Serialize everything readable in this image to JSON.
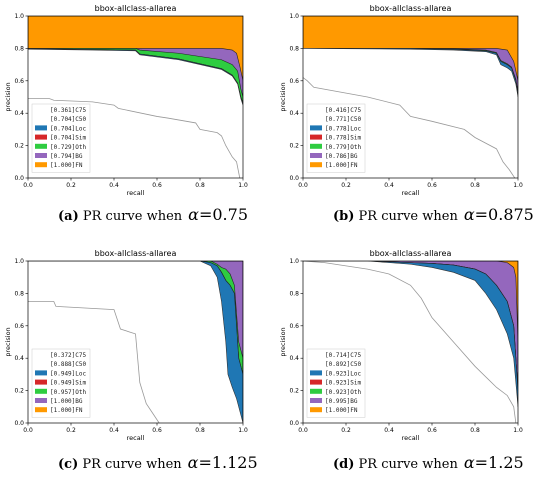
{
  "figures": [
    {
      "letter": "(a)",
      "text": "PR curve when",
      "symbol": "α",
      "value": "0.75"
    },
    {
      "letter": "(b)",
      "text": "PR curve when",
      "symbol": "α",
      "value": "0.875"
    },
    {
      "letter": "(c)",
      "text": "PR curve when",
      "symbol": "α",
      "value": "1.125"
    },
    {
      "letter": "(d)",
      "text": "PR curve when",
      "symbol": "α",
      "value": "1.25"
    }
  ],
  "chart_data": [
    {
      "type": "area",
      "title": "bbox-allclass-allarea",
      "xlabel": "recall",
      "ylabel": "precision",
      "xlim": [
        0,
        1
      ],
      "ylim": [
        0,
        1
      ],
      "xticks": [
        "0.0",
        "0.2",
        "0.4",
        "0.6",
        "0.8",
        "1.0"
      ],
      "yticks": [
        "0.0",
        "0.2",
        "0.4",
        "0.6",
        "0.8",
        "1.0"
      ],
      "legend_position": "bottom-left",
      "legend": [
        "[0.361]C75",
        "[0.704]C50",
        "[0.704]Loc",
        "[0.704]Sim",
        "[0.729]Oth",
        "[0.794]BG",
        "[1.000]FN"
      ],
      "colors": [
        "#ffffff",
        "#ffffff",
        "#1f77b4",
        "#d62728",
        "#2ecc40",
        "#9467bd",
        "#ff9900"
      ],
      "series": [
        {
          "name": "C75",
          "x": [
            0,
            0.1,
            0.12,
            0.3,
            0.4,
            0.42,
            0.6,
            0.65,
            0.78,
            0.8,
            0.88,
            0.9,
            0.92,
            0.95,
            0.97,
            0.985
          ],
          "y": [
            0.49,
            0.49,
            0.48,
            0.47,
            0.45,
            0.43,
            0.38,
            0.37,
            0.34,
            0.3,
            0.28,
            0.26,
            0.2,
            0.13,
            0.1,
            0
          ]
        },
        {
          "name": "C50",
          "x": [
            0,
            0.3,
            0.5,
            0.52,
            0.7,
            0.8,
            0.9,
            0.95,
            0.975,
            0.99,
            1.0
          ],
          "y": [
            0.795,
            0.79,
            0.785,
            0.76,
            0.73,
            0.7,
            0.67,
            0.63,
            0.58,
            0.49,
            0.45
          ]
        },
        {
          "name": "Loc",
          "x": [
            0,
            0.3,
            0.5,
            0.52,
            0.7,
            0.8,
            0.9,
            0.95,
            0.975,
            0.99,
            1.0
          ],
          "y": [
            0.798,
            0.793,
            0.79,
            0.765,
            0.735,
            0.705,
            0.675,
            0.635,
            0.585,
            0.5,
            0.46
          ]
        },
        {
          "name": "Sim",
          "x": [
            0,
            0.3,
            0.5,
            0.52,
            0.7,
            0.8,
            0.9,
            0.95,
            0.975,
            0.99,
            1.0
          ],
          "y": [
            0.798,
            0.793,
            0.79,
            0.765,
            0.735,
            0.705,
            0.675,
            0.635,
            0.585,
            0.5,
            0.46
          ]
        },
        {
          "name": "Oth",
          "x": [
            0,
            0.3,
            0.5,
            0.52,
            0.7,
            0.8,
            0.9,
            0.95,
            0.975,
            0.99,
            1.0
          ],
          "y": [
            0.8,
            0.8,
            0.8,
            0.79,
            0.77,
            0.75,
            0.73,
            0.7,
            0.66,
            0.55,
            0.5
          ]
        },
        {
          "name": "BG",
          "x": [
            0,
            0.5,
            0.7,
            0.8,
            0.9,
            0.95,
            0.97,
            0.985,
            1.0
          ],
          "y": [
            0.8,
            0.8,
            0.8,
            0.8,
            0.8,
            0.79,
            0.77,
            0.69,
            0.6
          ]
        },
        {
          "name": "FN",
          "x": [
            0,
            1.0
          ],
          "y": [
            1.0,
            1.0
          ]
        }
      ]
    },
    {
      "type": "area",
      "title": "bbox-allclass-allarea",
      "xlabel": "recall",
      "ylabel": "precision",
      "xlim": [
        0,
        1
      ],
      "ylim": [
        0,
        1
      ],
      "xticks": [
        "0.0",
        "0.2",
        "0.4",
        "0.6",
        "0.8",
        "1.0"
      ],
      "yticks": [
        "0.0",
        "0.2",
        "0.4",
        "0.6",
        "0.8",
        "1.0"
      ],
      "legend_position": "bottom-left",
      "legend": [
        "[0.416]C75",
        "[0.771]C50",
        "[0.778]Loc",
        "[0.778]Sim",
        "[0.779]Oth",
        "[0.786]BG",
        "[1.000]FN"
      ],
      "colors": [
        "#ffffff",
        "#ffffff",
        "#1f77b4",
        "#d62728",
        "#2ecc40",
        "#9467bd",
        "#ff9900"
      ],
      "series": [
        {
          "name": "C75",
          "x": [
            0,
            0.02,
            0.05,
            0.3,
            0.45,
            0.5,
            0.6,
            0.75,
            0.8,
            0.9,
            0.93,
            0.96,
            0.985
          ],
          "y": [
            0.62,
            0.6,
            0.56,
            0.5,
            0.45,
            0.38,
            0.35,
            0.3,
            0.25,
            0.18,
            0.1,
            0.05,
            0
          ]
        },
        {
          "name": "C50",
          "x": [
            0,
            0.5,
            0.7,
            0.85,
            0.9,
            0.92,
            0.95,
            0.97,
            0.99,
            1.0
          ],
          "y": [
            0.8,
            0.795,
            0.79,
            0.78,
            0.76,
            0.7,
            0.68,
            0.66,
            0.58,
            0.5
          ]
        },
        {
          "name": "Loc",
          "x": [
            0,
            0.5,
            0.7,
            0.85,
            0.9,
            0.92,
            0.95,
            0.97,
            0.99,
            1.0
          ],
          "y": [
            0.8,
            0.8,
            0.795,
            0.785,
            0.77,
            0.72,
            0.7,
            0.68,
            0.6,
            0.52
          ]
        },
        {
          "name": "Sim",
          "x": [
            0,
            0.5,
            0.7,
            0.85,
            0.9,
            0.92,
            0.95,
            0.97,
            0.99,
            1.0
          ],
          "y": [
            0.8,
            0.8,
            0.795,
            0.785,
            0.77,
            0.72,
            0.7,
            0.68,
            0.6,
            0.52
          ]
        },
        {
          "name": "Oth",
          "x": [
            0,
            0.5,
            0.7,
            0.85,
            0.9,
            0.92,
            0.95,
            0.97,
            0.99,
            1.0
          ],
          "y": [
            0.8,
            0.8,
            0.798,
            0.79,
            0.775,
            0.725,
            0.705,
            0.685,
            0.61,
            0.53
          ]
        },
        {
          "name": "BG",
          "x": [
            0,
            0.5,
            0.7,
            0.85,
            0.9,
            0.95,
            0.98,
            1.0
          ],
          "y": [
            0.8,
            0.8,
            0.8,
            0.8,
            0.8,
            0.79,
            0.72,
            0.6
          ]
        },
        {
          "name": "FN",
          "x": [
            0,
            1.0
          ],
          "y": [
            1.0,
            1.0
          ]
        }
      ]
    },
    {
      "type": "area",
      "title": "bbox-allclass-allarea",
      "xlabel": "recall",
      "ylabel": "precision",
      "xlim": [
        0,
        1
      ],
      "ylim": [
        0,
        1
      ],
      "xticks": [
        "0.0",
        "0.2",
        "0.4",
        "0.6",
        "0.8",
        "1.0"
      ],
      "yticks": [
        "0.0",
        "0.2",
        "0.4",
        "0.6",
        "0.8",
        "1.0"
      ],
      "legend_position": "bottom-left",
      "legend": [
        "[0.372]C75",
        "[0.888]C50",
        "[0.949]Loc",
        "[0.949]Sim",
        "[0.957]Oth",
        "[1.000]BG",
        "[1.000]FN"
      ],
      "colors": [
        "#ffffff",
        "#ffffff",
        "#1f77b4",
        "#d62728",
        "#2ecc40",
        "#9467bd",
        "#ff9900"
      ],
      "series": [
        {
          "name": "C75",
          "x": [
            0,
            0.12,
            0.13,
            0.4,
            0.43,
            0.5,
            0.52,
            0.55,
            0.58,
            0.61
          ],
          "y": [
            0.75,
            0.75,
            0.72,
            0.7,
            0.58,
            0.55,
            0.25,
            0.12,
            0.06,
            0
          ]
        },
        {
          "name": "C50",
          "x": [
            0,
            0.8,
            0.85,
            0.88,
            0.9,
            0.92,
            0.93,
            0.95,
            0.97,
            0.99,
            1.0
          ],
          "y": [
            1.0,
            1.0,
            0.97,
            0.9,
            0.75,
            0.5,
            0.3,
            0.22,
            0.15,
            0.05,
            0
          ]
        },
        {
          "name": "Loc",
          "x": [
            0,
            0.8,
            0.85,
            0.88,
            0.9,
            0.92,
            0.94,
            0.96,
            0.98,
            1.0
          ],
          "y": [
            1.0,
            1.0,
            0.99,
            0.97,
            0.93,
            0.88,
            0.85,
            0.8,
            0.4,
            0.3
          ]
        },
        {
          "name": "Sim",
          "x": [
            0,
            0.8,
            0.85,
            0.88,
            0.9,
            0.92,
            0.94,
            0.96,
            0.98,
            1.0
          ],
          "y": [
            1.0,
            1.0,
            0.99,
            0.97,
            0.93,
            0.88,
            0.85,
            0.8,
            0.4,
            0.3
          ]
        },
        {
          "name": "Oth",
          "x": [
            0,
            0.8,
            0.85,
            0.88,
            0.9,
            0.92,
            0.94,
            0.96,
            0.98,
            1.0
          ],
          "y": [
            1.0,
            1.0,
            1.0,
            0.98,
            0.96,
            0.95,
            0.92,
            0.85,
            0.5,
            0.4
          ]
        },
        {
          "name": "BG",
          "x": [
            0,
            1.0
          ],
          "y": [
            1.0,
            1.0
          ]
        },
        {
          "name": "FN",
          "x": [
            0,
            1.0
          ],
          "y": [
            1.0,
            1.0
          ]
        }
      ]
    },
    {
      "type": "area",
      "title": "bbox-allclass-allarea",
      "xlabel": "recall",
      "ylabel": "precision",
      "xlim": [
        0,
        1
      ],
      "ylim": [
        0,
        1
      ],
      "xticks": [
        "0.0",
        "0.2",
        "0.4",
        "0.6",
        "0.8",
        "1.0"
      ],
      "yticks": [
        "0.0",
        "0.2",
        "0.4",
        "0.6",
        "0.8",
        "1.0"
      ],
      "legend_position": "bottom-left",
      "legend": [
        "[0.714]C75",
        "[0.892]C50",
        "[0.923]Loc",
        "[0.923]Sim",
        "[0.923]Oth",
        "[0.995]BG",
        "[1.000]FN"
      ],
      "colors": [
        "#ffffff",
        "#ffffff",
        "#1f77b4",
        "#d62728",
        "#2ecc40",
        "#9467bd",
        "#ff9900"
      ],
      "series": [
        {
          "name": "C75",
          "x": [
            0,
            0.1,
            0.2,
            0.3,
            0.4,
            0.5,
            0.55,
            0.6,
            0.7,
            0.8,
            0.9,
            0.95,
            0.98,
            0.99
          ],
          "y": [
            1.0,
            0.99,
            0.97,
            0.95,
            0.92,
            0.85,
            0.77,
            0.65,
            0.5,
            0.35,
            0.22,
            0.17,
            0.1,
            0
          ]
        },
        {
          "name": "C50",
          "x": [
            0,
            0.3,
            0.4,
            0.5,
            0.6,
            0.7,
            0.8,
            0.85,
            0.9,
            0.95,
            0.98,
            1.0
          ],
          "y": [
            1.0,
            1.0,
            0.99,
            0.98,
            0.96,
            0.93,
            0.88,
            0.8,
            0.7,
            0.55,
            0.4,
            0.1
          ]
        },
        {
          "name": "Loc",
          "x": [
            0,
            0.3,
            0.5,
            0.6,
            0.7,
            0.8,
            0.85,
            0.9,
            0.95,
            0.98,
            1.0
          ],
          "y": [
            1.0,
            1.0,
            0.99,
            0.985,
            0.975,
            0.95,
            0.92,
            0.85,
            0.75,
            0.6,
            0.2
          ]
        },
        {
          "name": "Sim",
          "x": [
            0,
            0.3,
            0.5,
            0.6,
            0.7,
            0.8,
            0.85,
            0.9,
            0.95,
            0.98,
            1.0
          ],
          "y": [
            1.0,
            1.0,
            0.99,
            0.985,
            0.975,
            0.95,
            0.92,
            0.85,
            0.75,
            0.6,
            0.2
          ]
        },
        {
          "name": "Oth",
          "x": [
            0,
            0.3,
            0.5,
            0.6,
            0.7,
            0.8,
            0.85,
            0.9,
            0.95,
            0.98,
            1.0
          ],
          "y": [
            1.0,
            1.0,
            0.99,
            0.985,
            0.975,
            0.95,
            0.92,
            0.85,
            0.75,
            0.6,
            0.2
          ]
        },
        {
          "name": "BG",
          "x": [
            0,
            0.9,
            0.95,
            0.98,
            0.99,
            1.0
          ],
          "y": [
            1.0,
            1.0,
            0.99,
            0.96,
            0.9,
            0.5
          ]
        },
        {
          "name": "FN",
          "x": [
            0,
            1.0
          ],
          "y": [
            1.0,
            1.0
          ]
        }
      ]
    }
  ]
}
